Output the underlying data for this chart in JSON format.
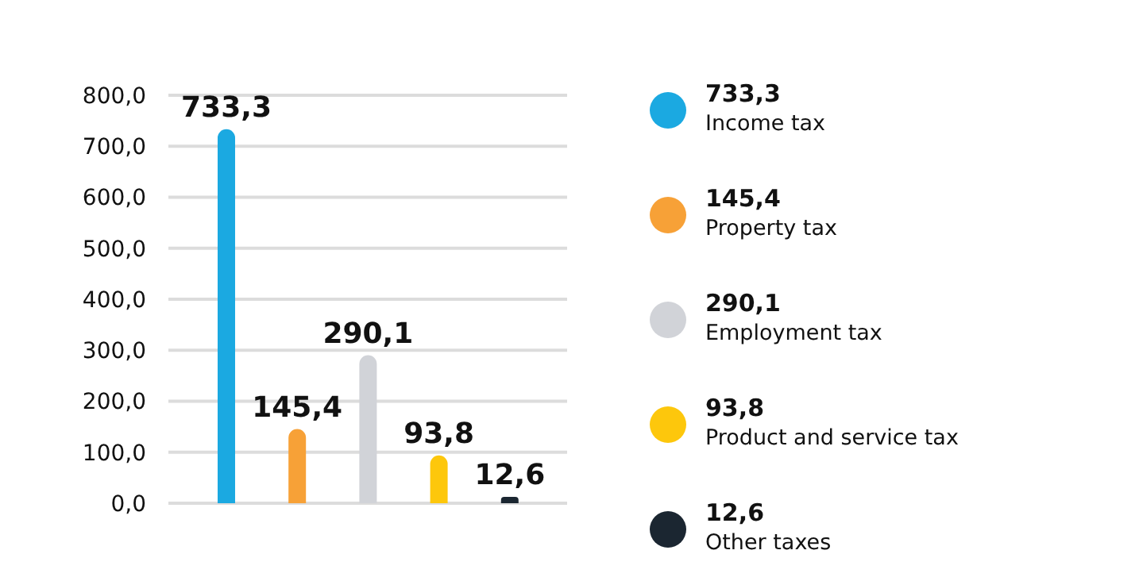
{
  "chart_data": {
    "type": "bar",
    "categories": [
      null,
      null,
      null,
      null,
      null
    ],
    "series": [
      {
        "name": "Income tax",
        "color": "#1ba9e1",
        "values": [
          733.3,
          null,
          null,
          null,
          null
        ],
        "value_labels": [
          "733,3",
          null,
          null,
          null,
          null
        ]
      },
      {
        "name": "Property tax",
        "color": "#f7a137",
        "values": [
          null,
          145.4,
          null,
          null,
          null
        ],
        "value_labels": [
          null,
          "145,4",
          null,
          null,
          null
        ]
      },
      {
        "name": "Employment tax",
        "color": "#d1d3d8",
        "values": [
          null,
          null,
          290.1,
          null,
          null
        ],
        "value_labels": [
          null,
          null,
          "290,1",
          null,
          null
        ]
      },
      {
        "name": "Product and service tax",
        "color": "#fdc70c",
        "values": [
          null,
          null,
          null,
          93.8,
          null
        ],
        "value_labels": [
          null,
          null,
          null,
          "93,8",
          null
        ]
      },
      {
        "name": "Other taxes",
        "color": "#1b2631",
        "values": [
          null,
          null,
          null,
          null,
          12.6
        ],
        "value_labels": [
          null,
          null,
          null,
          null,
          "12,6"
        ]
      }
    ],
    "stacked": true,
    "ylim": [
      0,
      800
    ],
    "yticks": [
      {
        "value": 0,
        "label": "0,0"
      },
      {
        "value": 100,
        "label": "100,0"
      },
      {
        "value": 200,
        "label": "200,0"
      },
      {
        "value": 300,
        "label": "300,0"
      },
      {
        "value": 400,
        "label": "400,0"
      },
      {
        "value": 500,
        "label": "500,0"
      },
      {
        "value": 600,
        "label": "600,0"
      },
      {
        "value": 700,
        "label": "700,0"
      },
      {
        "value": 800,
        "label": "800,0"
      }
    ],
    "grid": "y",
    "legend": "right",
    "tick_labels": "y"
  }
}
